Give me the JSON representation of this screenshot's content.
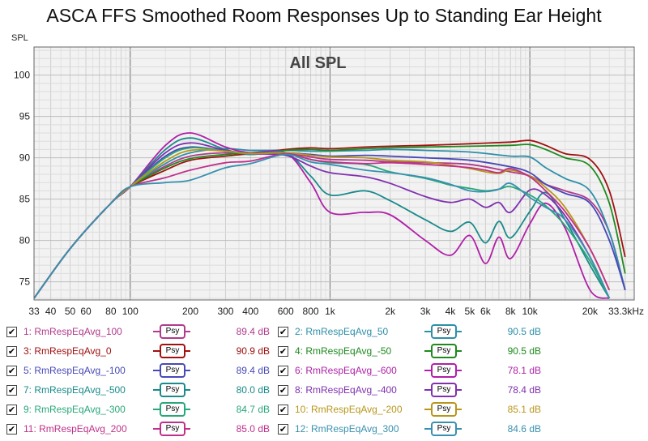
{
  "chart_data": {
    "type": "line",
    "title": "ASCA FFS Smoothed Room Responses Up to Standing Ear Height",
    "subtitle": "All SPL",
    "ylabel": "SPL",
    "xlabel": "",
    "x_scale": "log",
    "xlim": [
      33,
      33300
    ],
    "ylim": [
      72.8,
      103.4
    ],
    "y_ticks": [
      75,
      80,
      85,
      90,
      95,
      100
    ],
    "x_ticks": [
      {
        "v": 33,
        "label": "33"
      },
      {
        "v": 40,
        "label": "40"
      },
      {
        "v": 50,
        "label": "50"
      },
      {
        "v": 60,
        "label": "60"
      },
      {
        "v": 80,
        "label": "80"
      },
      {
        "v": 100,
        "label": "100"
      },
      {
        "v": 200,
        "label": "200"
      },
      {
        "v": 300,
        "label": "300"
      },
      {
        "v": 400,
        "label": "400"
      },
      {
        "v": 600,
        "label": "600"
      },
      {
        "v": 800,
        "label": "800"
      },
      {
        "v": 1000,
        "label": "1k"
      },
      {
        "v": 2000,
        "label": "2k"
      },
      {
        "v": 3000,
        "label": "3k"
      },
      {
        "v": 4000,
        "label": "4k"
      },
      {
        "v": 5000,
        "label": "5k"
      },
      {
        "v": 6000,
        "label": "6k"
      },
      {
        "v": 8000,
        "label": "8k"
      },
      {
        "v": 10000,
        "label": "10k"
      },
      {
        "v": 20000,
        "label": "20k"
      },
      {
        "v": 33300,
        "label": "33.3kHz"
      }
    ],
    "grid": true,
    "series": [
      {
        "name": "1: RmRespEqAvg_100",
        "value_label": "89.4 dB",
        "color": "#b03a8c",
        "x": [
          33,
          50,
          80,
          100,
          150,
          200,
          300,
          400,
          600,
          800,
          1000,
          1500,
          2000,
          3000,
          5000,
          8000,
          10000,
          12000,
          15000,
          20000,
          25000,
          30000
        ],
        "y": [
          73,
          79,
          84.5,
          86.5,
          89,
          90.2,
          90.6,
          90.4,
          90.6,
          90.1,
          89.8,
          89.7,
          89.5,
          89.4,
          89.2,
          88.3,
          87.8,
          86.8,
          86,
          84.8,
          81,
          74
        ]
      },
      {
        "name": "2: RmRespEqAvg_50",
        "value_label": "90.5 dB",
        "color": "#2d8fa8",
        "x": [
          33,
          50,
          80,
          100,
          150,
          200,
          300,
          400,
          600,
          800,
          1000,
          1500,
          2000,
          3000,
          5000,
          8000,
          10000,
          12000,
          15000,
          20000,
          25000,
          30000
        ],
        "y": [
          73,
          79,
          84.5,
          86.5,
          89.3,
          90.6,
          91.1,
          90.9,
          90.9,
          90.8,
          90.8,
          90.9,
          91,
          90.9,
          90.7,
          90.2,
          90.1,
          88.8,
          87.5,
          86,
          81,
          74
        ]
      },
      {
        "name": "3: RmRespEqAvg_0",
        "value_label": "90.9 dB",
        "color": "#a01010",
        "x": [
          33,
          50,
          80,
          100,
          150,
          200,
          300,
          400,
          600,
          800,
          1000,
          1500,
          2000,
          3000,
          5000,
          8000,
          10000,
          12000,
          15000,
          20000,
          25000,
          30000
        ],
        "y": [
          73,
          79,
          84.5,
          86.5,
          88.5,
          89.7,
          90.2,
          90.5,
          91,
          91.2,
          91.1,
          91.3,
          91.4,
          91.5,
          91.7,
          91.9,
          92.1,
          91.5,
          90.5,
          89.8,
          86,
          78
        ]
      },
      {
        "name": "4: RmRespEqAvg_-50",
        "value_label": "90.5 dB",
        "color": "#1e8a1e",
        "x": [
          33,
          50,
          80,
          100,
          150,
          200,
          300,
          400,
          600,
          800,
          1000,
          1500,
          2000,
          3000,
          5000,
          8000,
          10000,
          12000,
          15000,
          20000,
          25000,
          30000
        ],
        "y": [
          73,
          79,
          84.5,
          86.5,
          88.8,
          89.9,
          90.4,
          90.6,
          90.9,
          91,
          90.9,
          91.1,
          91.2,
          91.3,
          91.4,
          91.5,
          91.6,
          91,
          90,
          89,
          84.5,
          76
        ]
      },
      {
        "name": "5: RmRespEqAvg_-100",
        "value_label": "89.4 dB",
        "color": "#4848b8",
        "x": [
          33,
          50,
          80,
          100,
          150,
          200,
          300,
          400,
          600,
          800,
          1000,
          1500,
          2000,
          3000,
          5000,
          8000,
          10000,
          12000,
          15000,
          20000,
          25000,
          30000
        ],
        "y": [
          73,
          79,
          84.5,
          86.5,
          90.2,
          91.3,
          90.8,
          90.5,
          90.6,
          90.4,
          90.2,
          90.3,
          90.2,
          90,
          89.7,
          88.9,
          88.2,
          86.8,
          85.7,
          84.5,
          80,
          74
        ]
      },
      {
        "name": "6: RmRespEqAvg_-600",
        "value_label": "78.1 dB",
        "color": "#b020a8",
        "x": [
          33,
          50,
          80,
          100,
          150,
          200,
          300,
          400,
          600,
          800,
          1000,
          1500,
          2000,
          3000,
          4000,
          5000,
          6000,
          7000,
          8000,
          10000,
          12000,
          15000,
          20000,
          25000
        ],
        "y": [
          73,
          79,
          84.5,
          86.5,
          91.5,
          93,
          91.3,
          90.6,
          90.6,
          87,
          83.4,
          83.4,
          83.1,
          80,
          78.2,
          80.6,
          77.2,
          80.4,
          77.8,
          82,
          84.5,
          81.5,
          74,
          73
        ]
      },
      {
        "name": "7: RmRespEqAvg_-500",
        "value_label": "80.0 dB",
        "color": "#1a8a8a",
        "x": [
          33,
          50,
          80,
          100,
          150,
          200,
          300,
          400,
          600,
          800,
          1000,
          1500,
          2000,
          3000,
          4000,
          5000,
          6000,
          7000,
          8000,
          10000,
          12000,
          15000,
          20000,
          25000
        ],
        "y": [
          73,
          79,
          84.5,
          86.5,
          91,
          92.4,
          91,
          90.4,
          90.6,
          87.8,
          85.5,
          86,
          84.8,
          82.5,
          81.1,
          82.2,
          79.7,
          82.3,
          80.3,
          83.5,
          85.8,
          82.5,
          77,
          73
        ]
      },
      {
        "name": "8: RmRespEqAvg_-400",
        "value_label": "78.4 dB",
        "color": "#8030b0",
        "x": [
          33,
          50,
          80,
          100,
          150,
          200,
          300,
          400,
          600,
          800,
          1000,
          1500,
          2000,
          3000,
          4000,
          5000,
          6000,
          7000,
          8000,
          10000,
          12000,
          15000,
          20000,
          25000
        ],
        "y": [
          73,
          79,
          84.5,
          86.5,
          90.6,
          91.8,
          90.9,
          90.5,
          90.3,
          89,
          88.2,
          87.7,
          86.9,
          85.3,
          84.6,
          85,
          84,
          84.6,
          83.4,
          86.1,
          85.5,
          83,
          78,
          73
        ]
      },
      {
        "name": "9: RmRespEqAvg_-300",
        "value_label": "84.7 dB",
        "color": "#28a878",
        "x": [
          33,
          50,
          80,
          100,
          150,
          200,
          300,
          400,
          600,
          800,
          1000,
          1500,
          2000,
          3000,
          4000,
          5000,
          6000,
          7000,
          8000,
          10000,
          12000,
          15000,
          20000,
          25000
        ],
        "y": [
          73,
          79,
          84.5,
          86.5,
          90,
          91.2,
          90.8,
          90.5,
          90.6,
          89.8,
          89.4,
          89.2,
          88.3,
          87.5,
          86.7,
          86.3,
          86,
          86.2,
          86.5,
          85.5,
          84.2,
          81.8,
          77.5,
          73
        ]
      },
      {
        "name": "10: RmRespEqAvg_-200",
        "value_label": "85.1 dB",
        "color": "#b8961a",
        "x": [
          33,
          50,
          80,
          100,
          150,
          200,
          300,
          400,
          600,
          800,
          1000,
          1500,
          2000,
          3000,
          4000,
          5000,
          6000,
          7000,
          8000,
          10000,
          12000,
          15000,
          20000,
          25000
        ],
        "y": [
          73,
          79,
          84.5,
          86.5,
          89.6,
          90.9,
          90.8,
          90.5,
          90.6,
          90.3,
          90.1,
          90,
          89.7,
          89.5,
          89.1,
          88.7,
          88.3,
          88.1,
          88.5,
          87.8,
          86.4,
          84,
          79,
          74
        ]
      },
      {
        "name": "11: RmRespEqAvg_200",
        "value_label": "85.0 dB",
        "color": "#c0308a",
        "x": [
          33,
          50,
          80,
          100,
          150,
          200,
          300,
          400,
          600,
          800,
          1000,
          1500,
          2000,
          3000,
          4000,
          5000,
          6000,
          7000,
          8000,
          10000,
          12000,
          15000,
          20000,
          25000
        ],
        "y": [
          73,
          79,
          84.5,
          86.5,
          87.6,
          88.5,
          89.4,
          89.6,
          90.5,
          89.8,
          89.5,
          89.3,
          89.4,
          89.2,
          89,
          88.8,
          88.5,
          88.2,
          88.7,
          87.7,
          86,
          83.5,
          79,
          74
        ]
      },
      {
        "name": "12: RmRespEqAvg_300",
        "value_label": "84.6 dB",
        "color": "#3890b0",
        "x": [
          33,
          50,
          80,
          100,
          150,
          200,
          300,
          400,
          600,
          800,
          1000,
          1500,
          2000,
          3000,
          4000,
          5000,
          6000,
          7000,
          8000,
          10000,
          12000,
          15000,
          20000,
          25000
        ],
        "y": [
          73,
          79,
          84.5,
          86.5,
          87,
          87.3,
          88.8,
          89.3,
          90.4,
          89.5,
          89.2,
          88.5,
          88.2,
          87.6,
          86.8,
          86,
          85.9,
          86.2,
          86.9,
          85.2,
          84,
          82.5,
          78,
          73
        ]
      }
    ]
  },
  "legend_badge": "Psy"
}
